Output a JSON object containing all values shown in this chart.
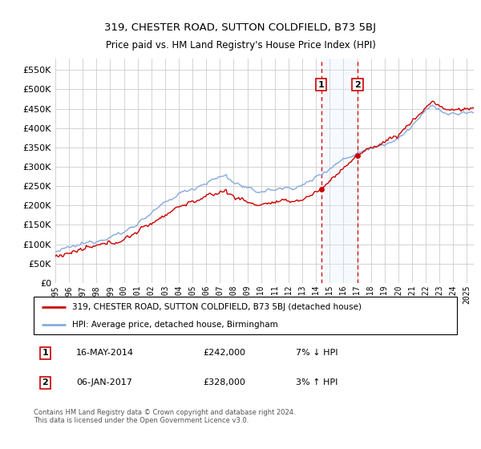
{
  "title": "319, CHESTER ROAD, SUTTON COLDFIELD, B73 5BJ",
  "subtitle": "Price paid vs. HM Land Registry's House Price Index (HPI)",
  "yticks": [
    0,
    50000,
    100000,
    150000,
    200000,
    250000,
    300000,
    350000,
    400000,
    450000,
    500000,
    550000
  ],
  "xlim_start": 1995.0,
  "xlim_end": 2025.5,
  "ylim": [
    0,
    580000
  ],
  "transaction1_date": 2014.37,
  "transaction1_price": 242000,
  "transaction2_date": 2017.02,
  "transaction2_price": 328000,
  "grid_color": "#cccccc",
  "hpi_color": "#88aadd",
  "price_color": "#cc0000",
  "shade_color": "#ddeeff",
  "legend_label_price": "319, CHESTER ROAD, SUTTON COLDFIELD, B73 5BJ (detached house)",
  "legend_label_hpi": "HPI: Average price, detached house, Birmingham",
  "footer": "Contains HM Land Registry data © Crown copyright and database right 2024.\nThis data is licensed under the Open Government Licence v3.0.",
  "xtick_years": [
    1995,
    1996,
    1997,
    1998,
    1999,
    2000,
    2001,
    2002,
    2003,
    2004,
    2005,
    2006,
    2007,
    2008,
    2009,
    2010,
    2011,
    2012,
    2013,
    2014,
    2015,
    2016,
    2017,
    2018,
    2019,
    2020,
    2021,
    2022,
    2023,
    2024,
    2025
  ]
}
